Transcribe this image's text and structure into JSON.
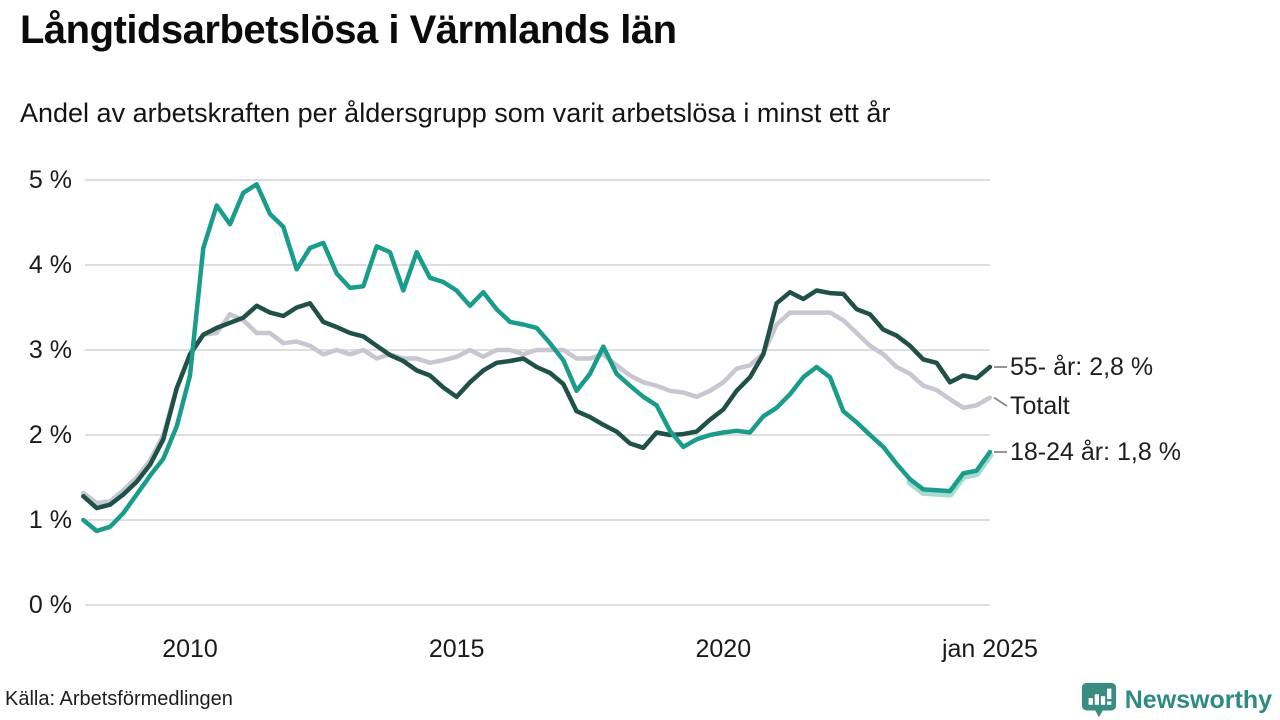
{
  "header": {
    "title": "Långtidsarbetslösa i Värmlands län",
    "subtitle": "Andel av arbetskraften per åldersgrupp som varit arbetslösa i minst ett år"
  },
  "footer": {
    "source": "Källa: Arbetsförmedlingen",
    "brand": "Newsworthy",
    "brand_color": "#2e8b81",
    "logo_color": "#3a8c80"
  },
  "chart_data": {
    "type": "line",
    "title": "Långtidsarbetslösa i Värmlands län",
    "xlabel": "",
    "ylabel": "",
    "unit": "%",
    "ylim": [
      0,
      5
    ],
    "y_ticks": [
      "0 %",
      "1 %",
      "2 %",
      "3 %",
      "4 %",
      "5 %"
    ],
    "x_ticks": [
      {
        "t": 2010,
        "label": "2010"
      },
      {
        "t": 2015,
        "label": "2015"
      },
      {
        "t": 2020,
        "label": "2020"
      },
      {
        "t": 2025,
        "label": "jan 2025"
      }
    ],
    "x_range": [
      2008.0,
      2025.0
    ],
    "grid": "horizontal",
    "legend_position": "end-of-line-labels-right",
    "grid_color": "#dedede",
    "series": [
      {
        "name": "Totalt",
        "label": "Totalt",
        "color": "#c7c6d1",
        "points": [
          [
            2008.0,
            1.32
          ],
          [
            2008.25,
            1.2
          ],
          [
            2008.5,
            1.22
          ],
          [
            2008.75,
            1.35
          ],
          [
            2009.0,
            1.5
          ],
          [
            2009.25,
            1.7
          ],
          [
            2009.5,
            2.0
          ],
          [
            2009.75,
            2.55
          ],
          [
            2010.0,
            2.95
          ],
          [
            2010.25,
            3.18
          ],
          [
            2010.5,
            3.2
          ],
          [
            2010.75,
            3.42
          ],
          [
            2011.0,
            3.35
          ],
          [
            2011.25,
            3.2
          ],
          [
            2011.5,
            3.2
          ],
          [
            2011.75,
            3.08
          ],
          [
            2012.0,
            3.1
          ],
          [
            2012.25,
            3.05
          ],
          [
            2012.5,
            2.95
          ],
          [
            2012.75,
            3.0
          ],
          [
            2013.0,
            2.95
          ],
          [
            2013.25,
            3.0
          ],
          [
            2013.5,
            2.9
          ],
          [
            2013.75,
            2.95
          ],
          [
            2014.0,
            2.9
          ],
          [
            2014.25,
            2.9
          ],
          [
            2014.5,
            2.85
          ],
          [
            2014.75,
            2.88
          ],
          [
            2015.0,
            2.92
          ],
          [
            2015.25,
            3.0
          ],
          [
            2015.5,
            2.92
          ],
          [
            2015.75,
            3.0
          ],
          [
            2016.0,
            3.0
          ],
          [
            2016.25,
            2.95
          ],
          [
            2016.5,
            3.0
          ],
          [
            2016.75,
            3.0
          ],
          [
            2017.0,
            3.0
          ],
          [
            2017.25,
            2.9
          ],
          [
            2017.5,
            2.9
          ],
          [
            2017.75,
            2.95
          ],
          [
            2018.0,
            2.82
          ],
          [
            2018.25,
            2.7
          ],
          [
            2018.5,
            2.62
          ],
          [
            2018.75,
            2.58
          ],
          [
            2019.0,
            2.52
          ],
          [
            2019.25,
            2.5
          ],
          [
            2019.5,
            2.45
          ],
          [
            2019.75,
            2.52
          ],
          [
            2020.0,
            2.62
          ],
          [
            2020.25,
            2.78
          ],
          [
            2020.5,
            2.82
          ],
          [
            2020.75,
            2.96
          ],
          [
            2021.0,
            3.3
          ],
          [
            2021.25,
            3.44
          ],
          [
            2021.5,
            3.44
          ],
          [
            2021.75,
            3.44
          ],
          [
            2022.0,
            3.44
          ],
          [
            2022.25,
            3.35
          ],
          [
            2022.5,
            3.2
          ],
          [
            2022.75,
            3.05
          ],
          [
            2023.0,
            2.95
          ],
          [
            2023.25,
            2.8
          ],
          [
            2023.5,
            2.72
          ],
          [
            2023.75,
            2.58
          ],
          [
            2024.0,
            2.53
          ],
          [
            2024.25,
            2.42
          ],
          [
            2024.5,
            2.32
          ],
          [
            2024.75,
            2.35
          ],
          [
            2025.0,
            2.44
          ]
        ]
      },
      {
        "name": "55- år",
        "label": "55- år: 2,8 %",
        "color": "#1f5148",
        "points": [
          [
            2008.0,
            1.28
          ],
          [
            2008.25,
            1.14
          ],
          [
            2008.5,
            1.18
          ],
          [
            2008.75,
            1.3
          ],
          [
            2009.0,
            1.45
          ],
          [
            2009.25,
            1.65
          ],
          [
            2009.5,
            1.95
          ],
          [
            2009.75,
            2.55
          ],
          [
            2010.0,
            2.95
          ],
          [
            2010.25,
            3.18
          ],
          [
            2010.5,
            3.26
          ],
          [
            2010.75,
            3.32
          ],
          [
            2011.0,
            3.38
          ],
          [
            2011.25,
            3.52
          ],
          [
            2011.5,
            3.44
          ],
          [
            2011.75,
            3.4
          ],
          [
            2012.0,
            3.5
          ],
          [
            2012.25,
            3.55
          ],
          [
            2012.5,
            3.33
          ],
          [
            2012.75,
            3.27
          ],
          [
            2013.0,
            3.2
          ],
          [
            2013.25,
            3.16
          ],
          [
            2013.5,
            3.05
          ],
          [
            2013.75,
            2.94
          ],
          [
            2014.0,
            2.87
          ],
          [
            2014.25,
            2.76
          ],
          [
            2014.5,
            2.7
          ],
          [
            2014.75,
            2.56
          ],
          [
            2015.0,
            2.45
          ],
          [
            2015.25,
            2.62
          ],
          [
            2015.5,
            2.76
          ],
          [
            2015.75,
            2.85
          ],
          [
            2016.0,
            2.87
          ],
          [
            2016.25,
            2.9
          ],
          [
            2016.5,
            2.8
          ],
          [
            2016.75,
            2.73
          ],
          [
            2017.0,
            2.6
          ],
          [
            2017.25,
            2.28
          ],
          [
            2017.5,
            2.21
          ],
          [
            2017.75,
            2.12
          ],
          [
            2018.0,
            2.04
          ],
          [
            2018.25,
            1.9
          ],
          [
            2018.5,
            1.85
          ],
          [
            2018.75,
            2.03
          ],
          [
            2019.0,
            2.0
          ],
          [
            2019.25,
            2.01
          ],
          [
            2019.5,
            2.04
          ],
          [
            2019.75,
            2.18
          ],
          [
            2020.0,
            2.3
          ],
          [
            2020.25,
            2.52
          ],
          [
            2020.5,
            2.68
          ],
          [
            2020.75,
            2.95
          ],
          [
            2021.0,
            3.55
          ],
          [
            2021.25,
            3.68
          ],
          [
            2021.5,
            3.6
          ],
          [
            2021.75,
            3.7
          ],
          [
            2022.0,
            3.67
          ],
          [
            2022.25,
            3.66
          ],
          [
            2022.5,
            3.48
          ],
          [
            2022.75,
            3.42
          ],
          [
            2023.0,
            3.24
          ],
          [
            2023.25,
            3.17
          ],
          [
            2023.5,
            3.05
          ],
          [
            2023.75,
            2.89
          ],
          [
            2024.0,
            2.85
          ],
          [
            2024.25,
            2.62
          ],
          [
            2024.5,
            2.7
          ],
          [
            2024.75,
            2.67
          ],
          [
            2025.0,
            2.8
          ]
        ]
      },
      {
        "name": "18-24 år",
        "label": "18-24 år: 1,8 %",
        "color": "#1a9c8b",
        "highlight_band": {
          "from": 2023.3,
          "to": 2025.0,
          "color": "#a6dbd2"
        },
        "points": [
          [
            2008.0,
            1.0
          ],
          [
            2008.25,
            0.87
          ],
          [
            2008.5,
            0.92
          ],
          [
            2008.75,
            1.08
          ],
          [
            2009.0,
            1.3
          ],
          [
            2009.25,
            1.52
          ],
          [
            2009.5,
            1.72
          ],
          [
            2009.75,
            2.1
          ],
          [
            2010.0,
            2.7
          ],
          [
            2010.25,
            4.2
          ],
          [
            2010.5,
            4.7
          ],
          [
            2010.75,
            4.48
          ],
          [
            2011.0,
            4.85
          ],
          [
            2011.25,
            4.95
          ],
          [
            2011.5,
            4.6
          ],
          [
            2011.75,
            4.45
          ],
          [
            2012.0,
            3.95
          ],
          [
            2012.25,
            4.2
          ],
          [
            2012.5,
            4.26
          ],
          [
            2012.75,
            3.9
          ],
          [
            2013.0,
            3.73
          ],
          [
            2013.25,
            3.75
          ],
          [
            2013.5,
            4.22
          ],
          [
            2013.75,
            4.15
          ],
          [
            2014.0,
            3.7
          ],
          [
            2014.25,
            4.15
          ],
          [
            2014.5,
            3.85
          ],
          [
            2014.75,
            3.8
          ],
          [
            2015.0,
            3.7
          ],
          [
            2015.25,
            3.52
          ],
          [
            2015.5,
            3.68
          ],
          [
            2015.75,
            3.48
          ],
          [
            2016.0,
            3.33
          ],
          [
            2016.25,
            3.3
          ],
          [
            2016.5,
            3.26
          ],
          [
            2016.75,
            3.08
          ],
          [
            2017.0,
            2.88
          ],
          [
            2017.25,
            2.52
          ],
          [
            2017.5,
            2.72
          ],
          [
            2017.75,
            3.04
          ],
          [
            2018.0,
            2.72
          ],
          [
            2018.25,
            2.58
          ],
          [
            2018.5,
            2.45
          ],
          [
            2018.75,
            2.35
          ],
          [
            2019.0,
            2.05
          ],
          [
            2019.25,
            1.86
          ],
          [
            2019.5,
            1.95
          ],
          [
            2019.75,
            2.0
          ],
          [
            2020.0,
            2.03
          ],
          [
            2020.25,
            2.05
          ],
          [
            2020.5,
            2.03
          ],
          [
            2020.75,
            2.22
          ],
          [
            2021.0,
            2.32
          ],
          [
            2021.25,
            2.48
          ],
          [
            2021.5,
            2.68
          ],
          [
            2021.75,
            2.8
          ],
          [
            2022.0,
            2.68
          ],
          [
            2022.25,
            2.28
          ],
          [
            2022.5,
            2.15
          ],
          [
            2022.75,
            2.0
          ],
          [
            2023.0,
            1.86
          ],
          [
            2023.25,
            1.66
          ],
          [
            2023.5,
            1.48
          ],
          [
            2023.75,
            1.36
          ],
          [
            2024.0,
            1.35
          ],
          [
            2024.25,
            1.34
          ],
          [
            2024.5,
            1.55
          ],
          [
            2024.75,
            1.58
          ],
          [
            2025.0,
            1.8
          ]
        ]
      }
    ]
  }
}
